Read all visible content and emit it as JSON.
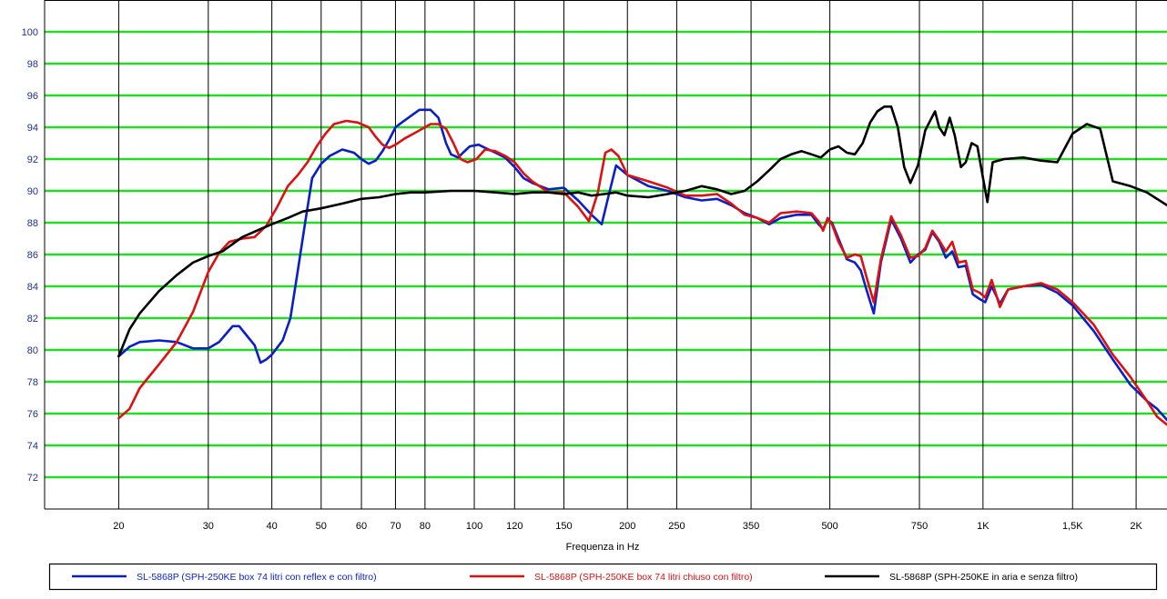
{
  "chart_data": {
    "type": "line",
    "title": "",
    "xlabel": "Frequenza in Hz",
    "ylabel": "",
    "x_scale": "log",
    "xlim": [
      14.3,
      2300
    ],
    "ylim": [
      70,
      102
    ],
    "y_ticks": [
      72,
      74,
      76,
      78,
      80,
      82,
      84,
      86,
      88,
      90,
      92,
      94,
      96,
      98,
      100
    ],
    "x_ticks": [
      {
        "value": 20,
        "label": "20"
      },
      {
        "value": 30,
        "label": "30"
      },
      {
        "value": 40,
        "label": "40"
      },
      {
        "value": 50,
        "label": "50"
      },
      {
        "value": 60,
        "label": "60"
      },
      {
        "value": 70,
        "label": "70"
      },
      {
        "value": 80,
        "label": "80"
      },
      {
        "value": 100,
        "label": "100"
      },
      {
        "value": 120,
        "label": "120"
      },
      {
        "value": 150,
        "label": "150"
      },
      {
        "value": 200,
        "label": "200"
      },
      {
        "value": 250,
        "label": "250"
      },
      {
        "value": 350,
        "label": "350"
      },
      {
        "value": 500,
        "label": "500"
      },
      {
        "value": 750,
        "label": "750"
      },
      {
        "value": 1000,
        "label": "1K"
      },
      {
        "value": 1500,
        "label": "1,5K"
      },
      {
        "value": 2000,
        "label": "2K"
      }
    ],
    "grid": true,
    "grid_color": "#22dd22",
    "legend_position": "bottom",
    "series": [
      {
        "name": "SL-5868P (SPH-250KE box 74 litri con reflex e con filtro)",
        "color": "#0a1fc8",
        "points": [
          [
            20,
            79.6
          ],
          [
            21,
            80.2
          ],
          [
            22,
            80.5
          ],
          [
            24,
            80.6
          ],
          [
            26,
            80.5
          ],
          [
            28,
            80.1
          ],
          [
            30,
            80.1
          ],
          [
            31.5,
            80.5
          ],
          [
            32.5,
            81.0
          ],
          [
            33.5,
            81.5
          ],
          [
            34.5,
            81.5
          ],
          [
            35.5,
            81.0
          ],
          [
            37,
            80.3
          ],
          [
            38,
            79.2
          ],
          [
            39,
            79.4
          ],
          [
            40,
            79.7
          ],
          [
            42,
            80.6
          ],
          [
            43.5,
            82.0
          ],
          [
            45,
            85.0
          ],
          [
            46.5,
            88.0
          ],
          [
            48,
            90.8
          ],
          [
            50,
            91.7
          ],
          [
            52,
            92.2
          ],
          [
            55,
            92.6
          ],
          [
            58,
            92.4
          ],
          [
            60,
            92.0
          ],
          [
            62,
            91.7
          ],
          [
            64,
            91.9
          ],
          [
            66,
            92.5
          ],
          [
            68,
            93.2
          ],
          [
            70,
            94.0
          ],
          [
            72,
            94.3
          ],
          [
            75,
            94.7
          ],
          [
            78,
            95.1
          ],
          [
            82,
            95.1
          ],
          [
            85,
            94.6
          ],
          [
            88,
            93.0
          ],
          [
            90,
            92.3
          ],
          [
            93,
            92.1
          ],
          [
            95,
            92.4
          ],
          [
            98,
            92.8
          ],
          [
            102,
            92.9
          ],
          [
            105,
            92.7
          ],
          [
            110,
            92.4
          ],
          [
            115,
            92.1
          ],
          [
            120,
            91.5
          ],
          [
            125,
            90.8
          ],
          [
            130,
            90.5
          ],
          [
            140,
            90.1
          ],
          [
            150,
            90.2
          ],
          [
            160,
            89.4
          ],
          [
            170,
            88.5
          ],
          [
            178,
            87.9
          ],
          [
            184,
            89.8
          ],
          [
            190,
            91.6
          ],
          [
            200,
            91.0
          ],
          [
            220,
            90.3
          ],
          [
            240,
            90.0
          ],
          [
            260,
            89.6
          ],
          [
            280,
            89.4
          ],
          [
            300,
            89.5
          ],
          [
            320,
            89.1
          ],
          [
            340,
            88.6
          ],
          [
            360,
            88.3
          ],
          [
            380,
            87.9
          ],
          [
            400,
            88.3
          ],
          [
            430,
            88.5
          ],
          [
            460,
            88.5
          ],
          [
            475,
            87.9
          ],
          [
            485,
            87.6
          ],
          [
            495,
            88.2
          ],
          [
            505,
            88.0
          ],
          [
            520,
            87.0
          ],
          [
            540,
            85.7
          ],
          [
            560,
            85.5
          ],
          [
            575,
            85.0
          ],
          [
            590,
            83.8
          ],
          [
            610,
            82.3
          ],
          [
            630,
            85.5
          ],
          [
            660,
            88.2
          ],
          [
            690,
            87.0
          ],
          [
            720,
            85.5
          ],
          [
            745,
            86.0
          ],
          [
            770,
            86.3
          ],
          [
            795,
            87.4
          ],
          [
            820,
            86.8
          ],
          [
            845,
            85.8
          ],
          [
            870,
            86.2
          ],
          [
            895,
            85.2
          ],
          [
            925,
            85.3
          ],
          [
            955,
            83.5
          ],
          [
            985,
            83.2
          ],
          [
            1010,
            83.0
          ],
          [
            1040,
            84.0
          ],
          [
            1080,
            82.9
          ],
          [
            1120,
            83.8
          ],
          [
            1200,
            84.0
          ],
          [
            1300,
            84.1
          ],
          [
            1400,
            83.6
          ],
          [
            1500,
            82.8
          ],
          [
            1650,
            81.2
          ],
          [
            1800,
            79.4
          ],
          [
            1950,
            77.8
          ],
          [
            2100,
            76.8
          ],
          [
            2200,
            76.3
          ],
          [
            2300,
            75.6
          ]
        ]
      },
      {
        "name": "SL-5868P (SPH-250KE box 74 litri chiuso con filtro)",
        "color": "#dd1111",
        "points": [
          [
            20,
            75.7
          ],
          [
            21,
            76.3
          ],
          [
            22,
            77.6
          ],
          [
            24,
            79.1
          ],
          [
            26,
            80.5
          ],
          [
            28,
            82.4
          ],
          [
            30,
            84.9
          ],
          [
            31.5,
            86.1
          ],
          [
            33,
            86.8
          ],
          [
            35,
            87.0
          ],
          [
            37,
            87.1
          ],
          [
            39,
            87.8
          ],
          [
            41,
            89.0
          ],
          [
            43,
            90.3
          ],
          [
            45,
            91.0
          ],
          [
            47,
            91.8
          ],
          [
            49,
            92.8
          ],
          [
            51,
            93.6
          ],
          [
            53,
            94.2
          ],
          [
            56,
            94.4
          ],
          [
            59,
            94.3
          ],
          [
            62,
            94.0
          ],
          [
            64,
            93.4
          ],
          [
            66,
            92.9
          ],
          [
            68,
            92.7
          ],
          [
            70,
            92.9
          ],
          [
            73,
            93.3
          ],
          [
            76,
            93.6
          ],
          [
            79,
            93.9
          ],
          [
            82,
            94.2
          ],
          [
            85,
            94.2
          ],
          [
            88,
            93.9
          ],
          [
            91,
            93.0
          ],
          [
            94,
            92.0
          ],
          [
            97,
            91.8
          ],
          [
            101,
            92.0
          ],
          [
            105,
            92.6
          ],
          [
            110,
            92.5
          ],
          [
            115,
            92.2
          ],
          [
            120,
            91.8
          ],
          [
            125,
            91.1
          ],
          [
            130,
            90.6
          ],
          [
            140,
            89.9
          ],
          [
            150,
            89.9
          ],
          [
            160,
            89.0
          ],
          [
            168,
            88.1
          ],
          [
            175,
            89.9
          ],
          [
            181,
            92.4
          ],
          [
            186,
            92.6
          ],
          [
            192,
            92.2
          ],
          [
            200,
            91.0
          ],
          [
            220,
            90.6
          ],
          [
            240,
            90.2
          ],
          [
            260,
            89.7
          ],
          [
            280,
            89.7
          ],
          [
            300,
            89.8
          ],
          [
            320,
            89.2
          ],
          [
            340,
            88.5
          ],
          [
            360,
            88.3
          ],
          [
            380,
            88.0
          ],
          [
            400,
            88.6
          ],
          [
            430,
            88.7
          ],
          [
            460,
            88.6
          ],
          [
            475,
            88.1
          ],
          [
            485,
            87.5
          ],
          [
            495,
            88.3
          ],
          [
            505,
            87.9
          ],
          [
            520,
            86.8
          ],
          [
            540,
            85.8
          ],
          [
            560,
            86.0
          ],
          [
            575,
            85.9
          ],
          [
            590,
            84.6
          ],
          [
            610,
            83.0
          ],
          [
            630,
            85.7
          ],
          [
            660,
            88.4
          ],
          [
            690,
            87.2
          ],
          [
            720,
            85.8
          ],
          [
            745,
            85.9
          ],
          [
            770,
            86.4
          ],
          [
            795,
            87.5
          ],
          [
            820,
            86.9
          ],
          [
            845,
            86.2
          ],
          [
            870,
            86.8
          ],
          [
            895,
            85.5
          ],
          [
            925,
            85.6
          ],
          [
            955,
            83.8
          ],
          [
            985,
            83.6
          ],
          [
            1010,
            83.3
          ],
          [
            1040,
            84.4
          ],
          [
            1080,
            82.7
          ],
          [
            1120,
            83.8
          ],
          [
            1200,
            84.0
          ],
          [
            1300,
            84.2
          ],
          [
            1400,
            83.8
          ],
          [
            1500,
            83.0
          ],
          [
            1650,
            81.6
          ],
          [
            1800,
            79.7
          ],
          [
            1950,
            78.3
          ],
          [
            2100,
            76.8
          ],
          [
            2200,
            75.8
          ],
          [
            2300,
            75.3
          ]
        ]
      },
      {
        "name": "SL-5868P (SPH-250KE in aria e senza filtro)",
        "color": "#000000",
        "points": [
          [
            20,
            79.6
          ],
          [
            21,
            81.3
          ],
          [
            22,
            82.3
          ],
          [
            24,
            83.7
          ],
          [
            26,
            84.7
          ],
          [
            28,
            85.5
          ],
          [
            30,
            85.9
          ],
          [
            32,
            86.2
          ],
          [
            35,
            87.1
          ],
          [
            38,
            87.6
          ],
          [
            40,
            87.9
          ],
          [
            43,
            88.3
          ],
          [
            46,
            88.7
          ],
          [
            50,
            88.9
          ],
          [
            55,
            89.2
          ],
          [
            60,
            89.5
          ],
          [
            65,
            89.6
          ],
          [
            70,
            89.8
          ],
          [
            75,
            89.9
          ],
          [
            80,
            89.9
          ],
          [
            90,
            90.0
          ],
          [
            100,
            90.0
          ],
          [
            110,
            89.9
          ],
          [
            120,
            89.8
          ],
          [
            130,
            89.9
          ],
          [
            140,
            89.9
          ],
          [
            150,
            89.8
          ],
          [
            160,
            89.9
          ],
          [
            170,
            89.7
          ],
          [
            180,
            89.8
          ],
          [
            190,
            89.9
          ],
          [
            200,
            89.7
          ],
          [
            220,
            89.6
          ],
          [
            240,
            89.8
          ],
          [
            260,
            90.0
          ],
          [
            280,
            90.3
          ],
          [
            300,
            90.1
          ],
          [
            320,
            89.8
          ],
          [
            340,
            90.0
          ],
          [
            360,
            90.6
          ],
          [
            380,
            91.3
          ],
          [
            400,
            92.0
          ],
          [
            420,
            92.3
          ],
          [
            440,
            92.5
          ],
          [
            460,
            92.3
          ],
          [
            480,
            92.1
          ],
          [
            500,
            92.6
          ],
          [
            520,
            92.8
          ],
          [
            540,
            92.4
          ],
          [
            560,
            92.3
          ],
          [
            580,
            93.0
          ],
          [
            600,
            94.3
          ],
          [
            620,
            95.0
          ],
          [
            640,
            95.3
          ],
          [
            660,
            95.3
          ],
          [
            680,
            94.0
          ],
          [
            700,
            91.5
          ],
          [
            720,
            90.5
          ],
          [
            745,
            91.6
          ],
          [
            770,
            93.8
          ],
          [
            790,
            94.5
          ],
          [
            805,
            95.0
          ],
          [
            820,
            94.0
          ],
          [
            840,
            93.5
          ],
          [
            860,
            94.6
          ],
          [
            880,
            93.5
          ],
          [
            905,
            91.5
          ],
          [
            925,
            91.8
          ],
          [
            950,
            93.0
          ],
          [
            975,
            92.8
          ],
          [
            1000,
            90.8
          ],
          [
            1020,
            89.3
          ],
          [
            1045,
            91.8
          ],
          [
            1100,
            92.0
          ],
          [
            1200,
            92.1
          ],
          [
            1300,
            91.9
          ],
          [
            1400,
            91.8
          ],
          [
            1500,
            93.6
          ],
          [
            1600,
            94.2
          ],
          [
            1700,
            93.9
          ],
          [
            1800,
            90.6
          ],
          [
            1950,
            90.3
          ],
          [
            2100,
            89.9
          ],
          [
            2300,
            89.1
          ]
        ]
      }
    ]
  }
}
